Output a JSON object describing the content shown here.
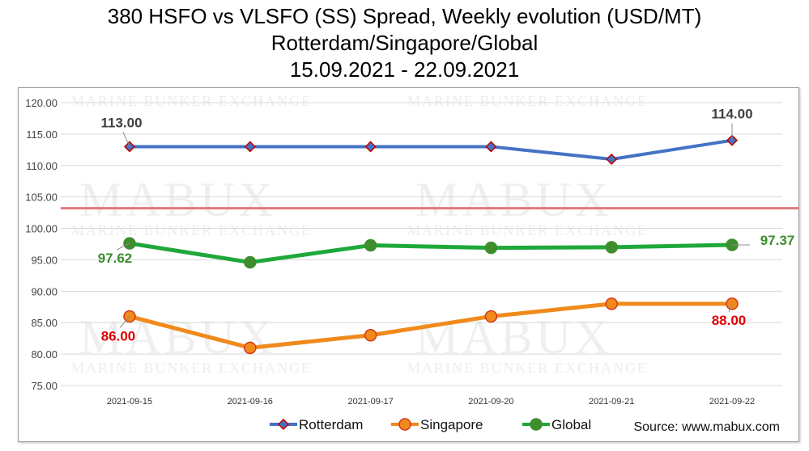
{
  "title": {
    "line1": "380 HSFO vs VLSFO (SS) Spread, Weekly evolution (USD/MT)",
    "line2": "Rotterdam/Singapore/Global",
    "line3": "15.09.2021 - 22.09.2021"
  },
  "watermark": {
    "main": "MABUX",
    "sub": "MARINE BUNKER EXCHANGE"
  },
  "source": "Source: www.mabux.com",
  "colors": {
    "rotterdam_line": "#4472C4",
    "rotterdam_marker_border": "#C00000",
    "singapore_line": "#F08A1C",
    "singapore_marker_border": "#D33A1A",
    "global_line": "#1FA83A",
    "global_marker": "#3E8E2E",
    "reference_line": "#E07A7A",
    "label_red": "#E00000",
    "label_green": "#3E8E2E",
    "label_dark": "#404040"
  },
  "chart_data": {
    "type": "line",
    "title": "380 HSFO vs VLSFO (SS) Spread, Weekly evolution (USD/MT)",
    "categories": [
      "2021-09-15",
      "2021-09-16",
      "2021-09-17",
      "2021-09-20",
      "2021-09-21",
      "2021-09-22"
    ],
    "yticks": [
      "75.00",
      "80.00",
      "85.00",
      "90.00",
      "95.00",
      "100.00",
      "105.00",
      "110.00",
      "115.00",
      "120.00"
    ],
    "ylim": [
      75,
      120
    ],
    "grid": true,
    "legend_position": "bottom",
    "reference_line": 103.2,
    "series": [
      {
        "name": "Rotterdam",
        "marker": "diamond",
        "values": [
          113,
          113,
          113,
          113,
          111,
          114
        ],
        "labels": [
          "113.00",
          "",
          "",
          "",
          "",
          "114.00"
        ]
      },
      {
        "name": "Singapore",
        "marker": "circle",
        "values": [
          86,
          81,
          83,
          86,
          88,
          88
        ],
        "labels": [
          "86.00",
          "",
          "",
          "",
          "",
          "88.00"
        ]
      },
      {
        "name": "Global",
        "marker": "circle",
        "values": [
          97.62,
          94.6,
          97.3,
          96.9,
          97.0,
          97.37
        ],
        "labels": [
          "97.62",
          "",
          "",
          "",
          "",
          "97.37"
        ]
      }
    ]
  }
}
